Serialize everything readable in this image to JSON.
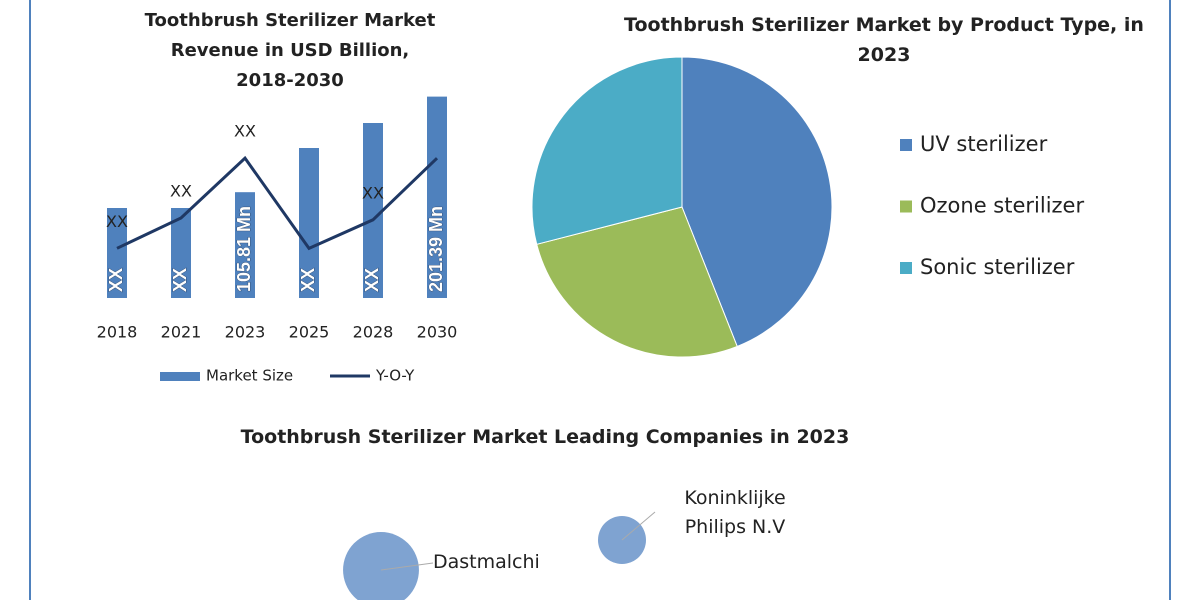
{
  "chart_data": [
    {
      "type": "bar",
      "title": "Toothbrush Sterilizer Market Revenue in USD Billion, 2018-2030",
      "categories": [
        "2018",
        "2021",
        "2023",
        "2025",
        "2028",
        "2030"
      ],
      "ylim": [
        0,
        230
      ],
      "y2lim": [
        0,
        25
      ],
      "series": [
        {
          "name": "Market Size",
          "type": "bar",
          "color": "#4f81bd",
          "values": [
            90,
            90,
            105.81,
            150,
            175,
            201.39
          ],
          "value_labels": [
            "XX",
            "XX",
            "105.81 Mn",
            "XX",
            "XX",
            "201.39 Mn"
          ]
        },
        {
          "name": "Y-O-Y",
          "type": "line",
          "axis": "y2",
          "color": "#1f3864",
          "values": [
            5.4,
            8.7,
            15.2,
            5.4,
            8.5,
            15.2
          ],
          "value_labels": [
            "XX",
            "XX",
            "XX",
            null,
            "XX",
            null
          ]
        }
      ]
    },
    {
      "type": "pie",
      "title": "Toothbrush Sterilizer Market by Product Type, in 2023",
      "categories": [
        "UV sterilizer",
        "Ozone sterilizer",
        "Sonic sterilizer"
      ],
      "values": [
        44,
        27,
        29
      ],
      "colors": [
        "#4f81bd",
        "#9bbb59",
        "#4bacc6"
      ]
    },
    {
      "type": "bubble",
      "title": "Toothbrush Sterilizer Market Leading Companies in 2023",
      "categories": [
        "Dastmalchi",
        "Koninklijke Philips N.V"
      ],
      "values": [
        2.5,
        1
      ],
      "color": "#7fa3d1"
    }
  ]
}
